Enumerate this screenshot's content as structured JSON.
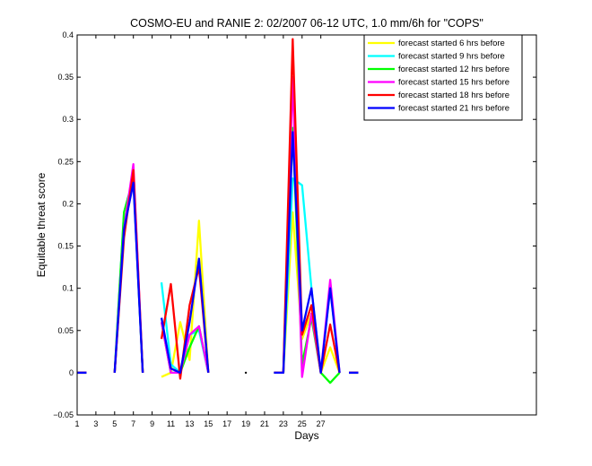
{
  "chart_data": {
    "type": "line",
    "title": "COSMO-EU and RANIE 2: 02/2007 06-12 UTC, 1.0 mm/6h for \"COPS\"",
    "xlabel": "Days",
    "ylabel": "Equitable threat score",
    "xlim": [
      1,
      50
    ],
    "ylim": [
      -0.05,
      0.4
    ],
    "xticks": [
      1,
      3,
      5,
      7,
      9,
      11,
      13,
      15,
      17,
      19,
      21,
      23,
      25,
      27
    ],
    "yticks": [
      -0.05,
      0,
      0.05,
      0.1,
      0.15,
      0.2,
      0.25,
      0.3,
      0.35,
      0.4
    ],
    "ytick_labels": [
      "−0.05",
      "0",
      "0.05",
      "0.1",
      "0.15",
      "0.2",
      "0.25",
      "0.3",
      "0.35",
      "0.4"
    ],
    "legend": "top-right",
    "series": [
      {
        "name": "forecast started 6 hrs before",
        "color": "#ffff00",
        "segments": [
          [
            [
              1,
              0
            ],
            [
              2,
              0
            ]
          ],
          [
            [
              5,
              0
            ],
            [
              6,
              0.17
            ],
            [
              7,
              0.24
            ],
            [
              8,
              0
            ]
          ],
          [
            [
              10,
              -0.005
            ],
            [
              11,
              0
            ],
            [
              12,
              0.06
            ],
            [
              13,
              0.015
            ],
            [
              14,
              0.18
            ],
            [
              15,
              0
            ]
          ],
          [
            [
              22,
              0
            ],
            [
              23,
              0
            ],
            [
              24,
              0.19
            ],
            [
              25,
              0.04
            ],
            [
              26,
              0.07
            ],
            [
              27,
              0
            ],
            [
              28,
              0.03
            ],
            [
              29,
              0
            ]
          ],
          [
            [
              30,
              0
            ],
            [
              31,
              0
            ]
          ]
        ]
      },
      {
        "name": "forecast started 9 hrs before",
        "color": "#00ffff",
        "segments": [
          [
            [
              1,
              0
            ],
            [
              2,
              0
            ]
          ],
          [
            [
              5,
              0
            ],
            [
              6,
              0.19
            ],
            [
              7,
              0.23
            ],
            [
              8,
              0
            ]
          ],
          [
            [
              10,
              0.107
            ],
            [
              11,
              0.01
            ],
            [
              12,
              0
            ],
            [
              13,
              0.045
            ],
            [
              14,
              0.05
            ],
            [
              15,
              0
            ]
          ],
          [
            [
              22,
              0
            ],
            [
              23,
              0
            ],
            [
              24,
              0.23
            ],
            [
              25,
              0.222
            ],
            [
              26,
              0.1
            ],
            [
              27,
              0
            ],
            [
              28,
              0.1
            ],
            [
              29,
              0
            ]
          ],
          [
            [
              30,
              0
            ],
            [
              31,
              0
            ]
          ]
        ]
      },
      {
        "name": "forecast started 12 hrs before",
        "color": "#00ff00",
        "segments": [
          [
            [
              1,
              0
            ],
            [
              2,
              0
            ]
          ],
          [
            [
              5,
              0
            ],
            [
              6,
              0.19
            ],
            [
              7,
              0.23
            ],
            [
              8,
              0
            ]
          ],
          [
            [
              10,
              0.06
            ],
            [
              11,
              0
            ],
            [
              12,
              0
            ],
            [
              13,
              0.03
            ],
            [
              14,
              0.055
            ],
            [
              15,
              0
            ]
          ],
          [
            [
              22,
              0
            ],
            [
              23,
              0
            ],
            [
              24,
              0.29
            ],
            [
              25,
              0.01
            ],
            [
              26,
              0.065
            ],
            [
              27,
              0
            ],
            [
              28,
              -0.012
            ],
            [
              29,
              0
            ]
          ],
          [
            [
              30,
              0
            ],
            [
              31,
              0
            ]
          ]
        ]
      },
      {
        "name": "forecast started 15 hrs before",
        "color": "#ff00ff",
        "segments": [
          [
            [
              1,
              0
            ],
            [
              2,
              0
            ]
          ],
          [
            [
              5,
              0
            ],
            [
              6,
              0.17
            ],
            [
              7,
              0.247
            ],
            [
              8,
              0
            ]
          ],
          [
            [
              10,
              0.06
            ],
            [
              11,
              0
            ],
            [
              12,
              0
            ],
            [
              13,
              0.045
            ],
            [
              14,
              0.055
            ],
            [
              15,
              0
            ]
          ],
          [
            [
              22,
              0
            ],
            [
              23,
              0
            ],
            [
              24,
              0.35
            ],
            [
              25,
              -0.005
            ],
            [
              26,
              0.07
            ],
            [
              27,
              0
            ],
            [
              28,
              0.11
            ],
            [
              29,
              0
            ]
          ],
          [
            [
              30,
              0
            ],
            [
              31,
              0
            ]
          ]
        ]
      },
      {
        "name": "forecast started 18 hrs before",
        "color": "#ff0000",
        "segments": [
          [
            [
              1,
              0
            ],
            [
              2,
              0
            ]
          ],
          [
            [
              5,
              0
            ],
            [
              6,
              0.16
            ],
            [
              7,
              0.24
            ],
            [
              8,
              0
            ]
          ],
          [
            [
              10,
              0.04
            ],
            [
              11,
              0.105
            ],
            [
              12,
              -0.007
            ],
            [
              13,
              0.08
            ],
            [
              14,
              0.125
            ],
            [
              15,
              0
            ]
          ],
          [
            [
              22,
              0
            ],
            [
              23,
              0
            ],
            [
              24,
              0.395
            ],
            [
              25,
              0.045
            ],
            [
              26,
              0.08
            ],
            [
              27,
              0
            ],
            [
              28,
              0.057
            ],
            [
              29,
              0
            ]
          ],
          [
            [
              30,
              0
            ],
            [
              31,
              0
            ]
          ]
        ]
      },
      {
        "name": "forecast started 21 hrs before",
        "color": "#0000ff",
        "segments": [
          [
            [
              1,
              0
            ],
            [
              2,
              0
            ]
          ],
          [
            [
              5,
              0
            ],
            [
              6,
              0.17
            ],
            [
              7,
              0.225
            ],
            [
              8,
              0
            ]
          ],
          [
            [
              10,
              0.065
            ],
            [
              11,
              0.005
            ],
            [
              12,
              0
            ],
            [
              13,
              0.06
            ],
            [
              14,
              0.135
            ],
            [
              15,
              0
            ]
          ],
          [
            [
              22,
              0
            ],
            [
              23,
              0
            ],
            [
              24,
              0.285
            ],
            [
              25,
              0.05
            ],
            [
              26,
              0.1
            ],
            [
              27,
              0
            ],
            [
              28,
              0.1
            ],
            [
              29,
              0
            ]
          ],
          [
            [
              30,
              0
            ],
            [
              31,
              0
            ]
          ]
        ]
      }
    ],
    "markers": [
      {
        "x": 19,
        "y": 0,
        "color": "#000000"
      }
    ]
  }
}
